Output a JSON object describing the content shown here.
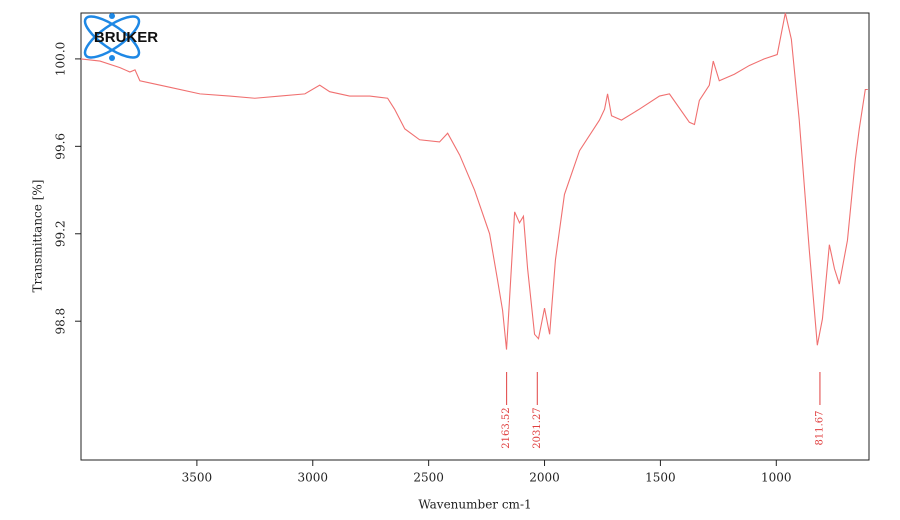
{
  "chart_data": {
    "type": "line",
    "logo": "BRUKER",
    "x_label": "Wavenumber cm-1",
    "y_label": "Transmittance [%]",
    "x": [
      4000,
      3918,
      3832,
      3789,
      3767,
      3746,
      3703,
      3616,
      3487,
      3358,
      3250,
      3142,
      3034,
      2970,
      2927,
      2841,
      2754,
      2677,
      2647,
      2603,
      2539,
      2453,
      2418,
      2366,
      2302,
      2237,
      2203,
      2181,
      2164,
      2151,
      2129,
      2108,
      2091,
      2073,
      2043,
      2026,
      2000,
      1978,
      1953,
      1914,
      1849,
      1763,
      1741,
      1728,
      1711,
      1668,
      1591,
      1504,
      1461,
      1375,
      1353,
      1332,
      1289,
      1272,
      1246,
      1181,
      1116,
      1052,
      996,
      961,
      935,
      901,
      858,
      823,
      801,
      771,
      749,
      728,
      693,
      659,
      642,
      616,
      605
    ],
    "values": [
      100.0,
      99.99,
      99.96,
      99.94,
      99.95,
      99.9,
      99.89,
      99.87,
      99.84,
      99.83,
      99.82,
      99.83,
      99.84,
      99.88,
      99.85,
      99.83,
      99.83,
      99.82,
      99.77,
      99.68,
      99.63,
      99.62,
      99.66,
      99.56,
      99.4,
      99.2,
      98.99,
      98.85,
      98.67,
      98.9,
      99.3,
      99.25,
      99.28,
      99.04,
      98.74,
      98.72,
      98.86,
      98.74,
      99.08,
      99.38,
      99.58,
      99.72,
      99.77,
      99.84,
      99.74,
      99.72,
      99.77,
      99.83,
      99.84,
      99.71,
      99.7,
      99.81,
      99.88,
      99.99,
      99.9,
      99.93,
      99.97,
      100.0,
      100.02,
      100.21,
      100.09,
      99.72,
      99.13,
      98.69,
      98.81,
      99.15,
      99.04,
      98.97,
      99.17,
      99.54,
      99.68,
      99.86,
      99.86
    ],
    "color": "#f07070",
    "peaks": [
      2163.52,
      2031.27,
      811.67
    ],
    "peak_color": "#e04040",
    "xlim": [
      4000,
      600
    ],
    "ylim": [
      98.165,
      100.21
    ],
    "xticks": [
      3500,
      3000,
      2500,
      2000,
      1500,
      1000
    ],
    "yticks": [
      {
        "value": 100,
        "label": "100.0"
      },
      99.6,
      99.2,
      98.8
    ]
  }
}
